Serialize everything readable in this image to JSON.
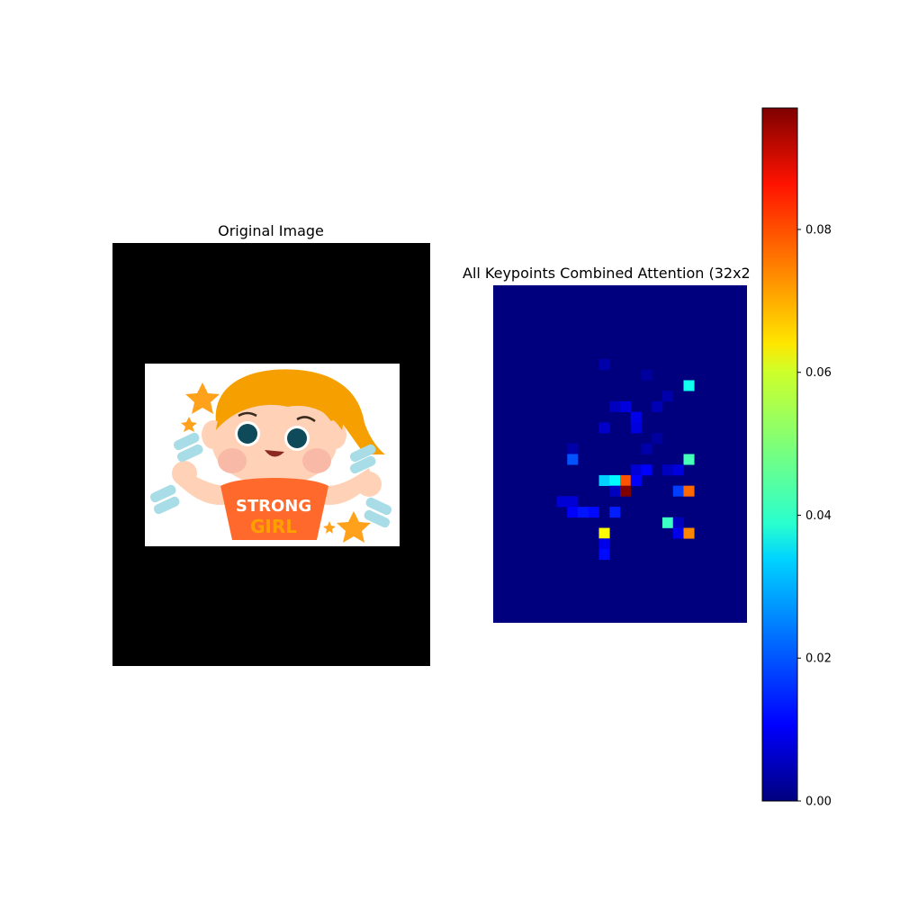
{
  "panels": {
    "left_title": "Original Image",
    "right_title": "All Keypoints Combined Attention (32x2"
  },
  "sticker": {
    "shirt_line1": "STRONG",
    "shirt_line2": "GIRL"
  },
  "colors": {
    "background": "#ffffff",
    "letterbox": "#000000",
    "hair": "#f5a000",
    "skin": "#ffd2b8",
    "shirt": "#ff6a2c",
    "dumbbell": "#a8dce6",
    "star": "#ffa11a"
  },
  "chart_data": {
    "type": "heatmap",
    "title": "All Keypoints Combined Attention (32x2",
    "colormap": "jet",
    "grid": {
      "rows": 32,
      "cols": 24
    },
    "colorbar": {
      "range": [
        0,
        0.097
      ],
      "ticks": [
        "0.00",
        "0.02",
        "0.04",
        "0.06",
        "0.08"
      ],
      "tick_values": [
        0,
        0.02,
        0.04,
        0.06,
        0.08
      ]
    },
    "cells": [
      {
        "row": 7,
        "col": 10,
        "value": 0.004
      },
      {
        "row": 8,
        "col": 14,
        "value": 0.003
      },
      {
        "row": 9,
        "col": 18,
        "value": 0.038
      },
      {
        "row": 10,
        "col": 16,
        "value": 0.004
      },
      {
        "row": 11,
        "col": 11,
        "value": 0.006
      },
      {
        "row": 11,
        "col": 12,
        "value": 0.009
      },
      {
        "row": 11,
        "col": 15,
        "value": 0.005
      },
      {
        "row": 12,
        "col": 13,
        "value": 0.01
      },
      {
        "row": 13,
        "col": 10,
        "value": 0.007
      },
      {
        "row": 13,
        "col": 13,
        "value": 0.009
      },
      {
        "row": 14,
        "col": 15,
        "value": 0.003
      },
      {
        "row": 15,
        "col": 7,
        "value": 0.004
      },
      {
        "row": 15,
        "col": 14,
        "value": 0.004
      },
      {
        "row": 16,
        "col": 7,
        "value": 0.02
      },
      {
        "row": 16,
        "col": 18,
        "value": 0.043
      },
      {
        "row": 17,
        "col": 13,
        "value": 0.008
      },
      {
        "row": 17,
        "col": 14,
        "value": 0.012
      },
      {
        "row": 17,
        "col": 16,
        "value": 0.006
      },
      {
        "row": 17,
        "col": 17,
        "value": 0.009
      },
      {
        "row": 18,
        "col": 10,
        "value": 0.032
      },
      {
        "row": 18,
        "col": 11,
        "value": 0.036
      },
      {
        "row": 18,
        "col": 12,
        "value": 0.077
      },
      {
        "row": 18,
        "col": 13,
        "value": 0.012
      },
      {
        "row": 19,
        "col": 11,
        "value": 0.006
      },
      {
        "row": 19,
        "col": 12,
        "value": 0.097
      },
      {
        "row": 19,
        "col": 17,
        "value": 0.018
      },
      {
        "row": 19,
        "col": 18,
        "value": 0.075
      },
      {
        "row": 20,
        "col": 6,
        "value": 0.008
      },
      {
        "row": 20,
        "col": 7,
        "value": 0.008
      },
      {
        "row": 21,
        "col": 7,
        "value": 0.012
      },
      {
        "row": 21,
        "col": 8,
        "value": 0.014
      },
      {
        "row": 21,
        "col": 9,
        "value": 0.013
      },
      {
        "row": 21,
        "col": 11,
        "value": 0.015
      },
      {
        "row": 22,
        "col": 16,
        "value": 0.042
      },
      {
        "row": 22,
        "col": 17,
        "value": 0.006
      },
      {
        "row": 23,
        "col": 10,
        "value": 0.061
      },
      {
        "row": 23,
        "col": 17,
        "value": 0.01
      },
      {
        "row": 23,
        "col": 18,
        "value": 0.072
      },
      {
        "row": 24,
        "col": 10,
        "value": 0.01
      },
      {
        "row": 25,
        "col": 10,
        "value": 0.013
      }
    ]
  }
}
